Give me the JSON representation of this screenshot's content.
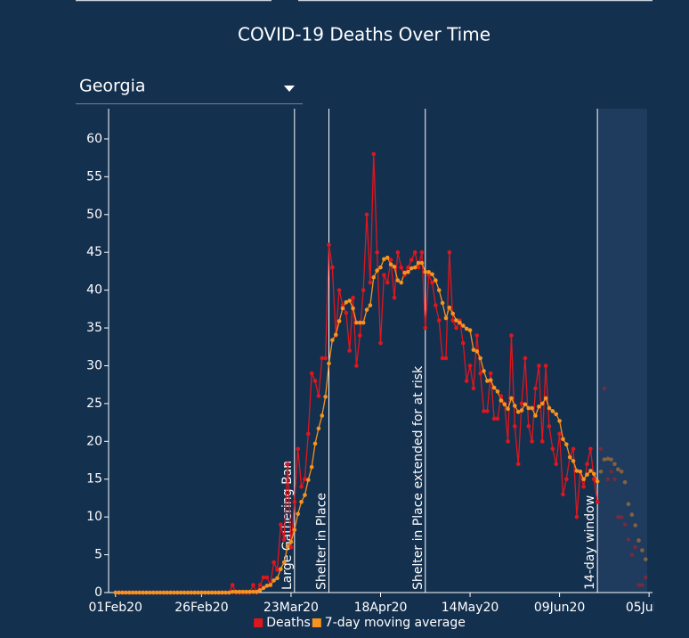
{
  "state_selector": {
    "selected": "Georgia"
  },
  "chart_data": {
    "type": "line",
    "title": "COVID-19 Deaths Over Time",
    "x": [
      "2020-02-01",
      "2020-02-02",
      "2020-02-03",
      "2020-02-04",
      "2020-02-05",
      "2020-02-06",
      "2020-02-07",
      "2020-02-08",
      "2020-02-09",
      "2020-02-10",
      "2020-02-11",
      "2020-02-12",
      "2020-02-13",
      "2020-02-14",
      "2020-02-15",
      "2020-02-16",
      "2020-02-17",
      "2020-02-18",
      "2020-02-19",
      "2020-02-20",
      "2020-02-21",
      "2020-02-22",
      "2020-02-23",
      "2020-02-24",
      "2020-02-25",
      "2020-02-26",
      "2020-02-27",
      "2020-02-28",
      "2020-02-29",
      "2020-03-01",
      "2020-03-02",
      "2020-03-03",
      "2020-03-04",
      "2020-03-05",
      "2020-03-06",
      "2020-03-07",
      "2020-03-08",
      "2020-03-09",
      "2020-03-10",
      "2020-03-11",
      "2020-03-12",
      "2020-03-13",
      "2020-03-14",
      "2020-03-15",
      "2020-03-16",
      "2020-03-17",
      "2020-03-18",
      "2020-03-19",
      "2020-03-20",
      "2020-03-21",
      "2020-03-22",
      "2020-03-23",
      "2020-03-24",
      "2020-03-25",
      "2020-03-26",
      "2020-03-27",
      "2020-03-28",
      "2020-03-29",
      "2020-03-30",
      "2020-03-31",
      "2020-04-01",
      "2020-04-02",
      "2020-04-03",
      "2020-04-04",
      "2020-04-05",
      "2020-04-06",
      "2020-04-07",
      "2020-04-08",
      "2020-04-09",
      "2020-04-10",
      "2020-04-11",
      "2020-04-12",
      "2020-04-13",
      "2020-04-14",
      "2020-04-15",
      "2020-04-16",
      "2020-04-17",
      "2020-04-18",
      "2020-04-19",
      "2020-04-20",
      "2020-04-21",
      "2020-04-22",
      "2020-04-23",
      "2020-04-24",
      "2020-04-25",
      "2020-04-26",
      "2020-04-27",
      "2020-04-28",
      "2020-04-29",
      "2020-04-30",
      "2020-05-01",
      "2020-05-02",
      "2020-05-03",
      "2020-05-04",
      "2020-05-05",
      "2020-05-06",
      "2020-05-07",
      "2020-05-08",
      "2020-05-09",
      "2020-05-10",
      "2020-05-11",
      "2020-05-12",
      "2020-05-13",
      "2020-05-14",
      "2020-05-15",
      "2020-05-16",
      "2020-05-17",
      "2020-05-18",
      "2020-05-19",
      "2020-05-20",
      "2020-05-21",
      "2020-05-22",
      "2020-05-23",
      "2020-05-24",
      "2020-05-25",
      "2020-05-26",
      "2020-05-27",
      "2020-05-28",
      "2020-05-29",
      "2020-05-30",
      "2020-05-31",
      "2020-06-01",
      "2020-06-02",
      "2020-06-03",
      "2020-06-04",
      "2020-06-05",
      "2020-06-06",
      "2020-06-07",
      "2020-06-08",
      "2020-06-09",
      "2020-06-10",
      "2020-06-11",
      "2020-06-12",
      "2020-06-13",
      "2020-06-14",
      "2020-06-15",
      "2020-06-16",
      "2020-06-17",
      "2020-06-18",
      "2020-06-19",
      "2020-06-20",
      "2020-06-21",
      "2020-06-22",
      "2020-06-23",
      "2020-06-24",
      "2020-06-25",
      "2020-06-26",
      "2020-06-27",
      "2020-06-28",
      "2020-06-29",
      "2020-06-30",
      "2020-07-01",
      "2020-07-02",
      "2020-07-03",
      "2020-07-04"
    ],
    "series": [
      {
        "name": "Deaths",
        "color": "#e0161d",
        "values": [
          0,
          0,
          0,
          0,
          0,
          0,
          0,
          0,
          0,
          0,
          0,
          0,
          0,
          0,
          0,
          0,
          0,
          0,
          0,
          0,
          0,
          0,
          0,
          0,
          0,
          0,
          0,
          0,
          0,
          0,
          0,
          0,
          0,
          0,
          1,
          0,
          0,
          0,
          0,
          0,
          1,
          0,
          1,
          2,
          2,
          1,
          4,
          3,
          9,
          7,
          17,
          6,
          12,
          19,
          14,
          15,
          21,
          29,
          28,
          26,
          31,
          31,
          46,
          43,
          34,
          40,
          38,
          37,
          32,
          39,
          30,
          34,
          40,
          50,
          41,
          58,
          45,
          33,
          42,
          41,
          44,
          39,
          45,
          43,
          42,
          43,
          44,
          45,
          43,
          45,
          35,
          42,
          41,
          38,
          36,
          31,
          31,
          45,
          36,
          35,
          36,
          33,
          28,
          30,
          27,
          34,
          29,
          24,
          24,
          29,
          23,
          23,
          26,
          25,
          20,
          34,
          22,
          17,
          25,
          31,
          22,
          20,
          27,
          30,
          20,
          30,
          22,
          19,
          17,
          21,
          13,
          15,
          18,
          19,
          10,
          16,
          14,
          17,
          19,
          15,
          12,
          19,
          27,
          15,
          16,
          15,
          10,
          10,
          9,
          7,
          5,
          6,
          1,
          1,
          2
        ]
      },
      {
        "name": "7-day moving average",
        "color": "#f7931e",
        "values": [
          0,
          0,
          0,
          0,
          0,
          0,
          0,
          0,
          0,
          0,
          0,
          0,
          0,
          0,
          0,
          0,
          0,
          0,
          0,
          0,
          0,
          0,
          0,
          0,
          0,
          0,
          0,
          0,
          0,
          0,
          0,
          0,
          0,
          0,
          0.1,
          0.1,
          0.1,
          0.1,
          0.1,
          0.1,
          0.1,
          0.1,
          0.3,
          0.6,
          0.9,
          1.0,
          1.6,
          1.9,
          3.1,
          4.0,
          6.1,
          6.7,
          8.3,
          10.4,
          12.0,
          12.9,
          14.9,
          16.6,
          19.7,
          21.7,
          23.4,
          25.9,
          30.3,
          33.4,
          34.1,
          35.9,
          37.6,
          38.4,
          38.6,
          37.6,
          35.7,
          35.7,
          35.7,
          37.4,
          38.0,
          41.7,
          42.6,
          43.0,
          44.1,
          44.3,
          43.4,
          43.1,
          41.3,
          41.0,
          42.3,
          42.4,
          42.9,
          43.0,
          43.6,
          43.6,
          42.4,
          42.4,
          42.1,
          41.3,
          40.0,
          38.3,
          36.3,
          37.7,
          36.9,
          36.0,
          35.7,
          35.3,
          34.9,
          34.7,
          32.1,
          31.9,
          31.0,
          29.3,
          28.0,
          28.1,
          27.1,
          26.6,
          25.4,
          24.9,
          24.3,
          25.7,
          24.7,
          23.9,
          24.1,
          24.9,
          24.4,
          24.4,
          23.4,
          24.6,
          25.0,
          25.7,
          24.4,
          24.0,
          23.6,
          22.7,
          20.3,
          19.6,
          17.9,
          17.4,
          16.1,
          16.0,
          15.0,
          15.6,
          16.1,
          15.7,
          14.7,
          16.0,
          17.6,
          17.7,
          17.6,
          17.0,
          16.3,
          16.0,
          14.6,
          11.7,
          10.3,
          8.9,
          6.9,
          5.6,
          4.4
        ]
      }
    ],
    "events": [
      {
        "date": "2020-03-24",
        "label": "Large Gathering Ban"
      },
      {
        "date": "2020-04-03",
        "label": "Shelter in Place"
      },
      {
        "date": "2020-05-01",
        "label": "Shelter in Place extended for at risk"
      },
      {
        "date": "2020-06-20",
        "label": "14-day window"
      }
    ],
    "xlim": [
      "2020-01-30",
      "2020-07-06"
    ],
    "xticks": [
      {
        "value": "2020-02-01",
        "label": "01Feb20"
      },
      {
        "value": "2020-02-26",
        "label": "26Feb20"
      },
      {
        "value": "2020-03-23",
        "label": "23Mar20"
      },
      {
        "value": "2020-04-18",
        "label": "18Apr20"
      },
      {
        "value": "2020-05-14",
        "label": "14May20"
      },
      {
        "value": "2020-06-09",
        "label": "09Jun20"
      },
      {
        "value": "2020-07-05",
        "label": "05Jul20"
      }
    ],
    "ylim": [
      0,
      64
    ],
    "yticks": [
      0,
      5,
      10,
      15,
      20,
      25,
      30,
      35,
      40,
      45,
      50,
      55,
      60
    ],
    "legend": "bottom"
  }
}
